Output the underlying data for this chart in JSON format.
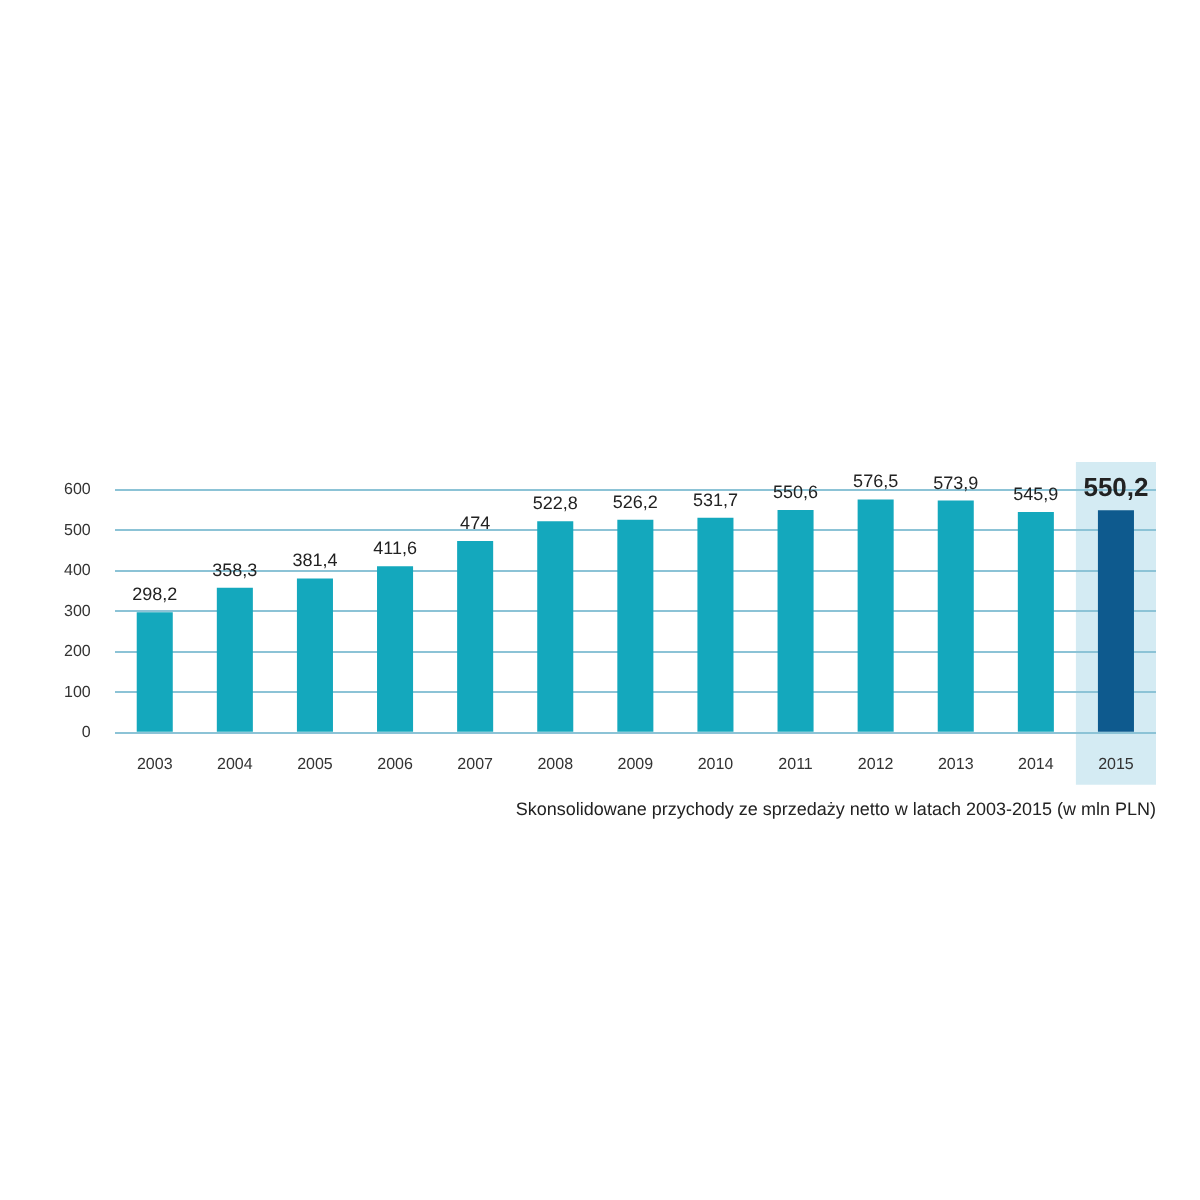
{
  "chart_data": {
    "type": "bar",
    "categories": [
      "2003",
      "2004",
      "2005",
      "2006",
      "2007",
      "2008",
      "2009",
      "2010",
      "2011",
      "2012",
      "2013",
      "2014",
      "2015"
    ],
    "values": [
      298.2,
      358.3,
      381.4,
      411.6,
      474,
      522.8,
      526.2,
      531.7,
      550.6,
      576.5,
      573.9,
      545.9,
      550.2
    ],
    "value_labels": [
      "298,2",
      "358,3",
      "381,4",
      "411,6",
      "474",
      "522,8",
      "526,2",
      "531,7",
      "550,6",
      "576,5",
      "573,9",
      "545,9",
      "550,2"
    ],
    "colors": [
      "#14a8bd",
      "#14a8bd",
      "#14a8bd",
      "#14a8bd",
      "#14a8bd",
      "#14a8bd",
      "#14a8bd",
      "#14a8bd",
      "#14a8bd",
      "#14a8bd",
      "#14a8bd",
      "#14a8bd",
      "#0e5a8e"
    ],
    "ylim": [
      0,
      600
    ],
    "yticks": [
      0,
      100,
      200,
      300,
      400,
      500,
      600
    ],
    "grid": "y",
    "bands": [
      {
        "axis": "x",
        "from": "2015",
        "to": "2015",
        "color": "#d4ebf3"
      }
    ],
    "annotations": [
      "Skonsolidowane przychody ze sprzedaży netto w latach 2003-2015 (w mln PLN)"
    ]
  }
}
